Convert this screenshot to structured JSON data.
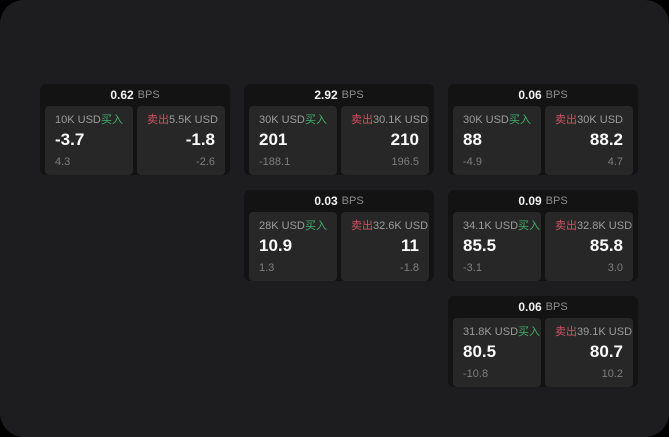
{
  "labels": {
    "bps_unit": "BPS",
    "buy": "买入",
    "sell": "卖出"
  },
  "colors": {
    "buy_green": "#3fae68",
    "sell_red": "#d05260",
    "page_background": "#1d1d1f",
    "card_background": "#131313",
    "panel_background": "#272727"
  },
  "cards": [
    {
      "row": 1,
      "col": 1,
      "bps": "0.62",
      "buy_size": "10K USD",
      "buy_price": "-3.7",
      "buy_sub": "4.3",
      "sell_size": "5.5K USD",
      "sell_price": "-1.8",
      "sell_sub": "-2.6"
    },
    {
      "row": 1,
      "col": 2,
      "bps": "2.92",
      "buy_size": "30K USD",
      "buy_price": "201",
      "buy_sub": "-188.1",
      "sell_size": "30.1K USD",
      "sell_price": "210",
      "sell_sub": "196.5"
    },
    {
      "row": 1,
      "col": 3,
      "bps": "0.06",
      "buy_size": "30K USD",
      "buy_price": "88",
      "buy_sub": "-4.9",
      "sell_size": "30K USD",
      "sell_price": "88.2",
      "sell_sub": "4.7"
    },
    {
      "row": 2,
      "col": 2,
      "bps": "0.03",
      "buy_size": "28K USD",
      "buy_price": "10.9",
      "buy_sub": "1.3",
      "sell_size": "32.6K USD",
      "sell_price": "11",
      "sell_sub": "-1.8"
    },
    {
      "row": 2,
      "col": 3,
      "bps": "0.09",
      "buy_size": "34.1K USD",
      "buy_price": "85.5",
      "buy_sub": "-3.1",
      "sell_size": "32.8K USD",
      "sell_price": "85.8",
      "sell_sub": "3.0"
    },
    {
      "row": 3,
      "col": 3,
      "bps": "0.06",
      "buy_size": "31.8K USD",
      "buy_price": "80.5",
      "buy_sub": "-10.8",
      "sell_size": "39.1K USD",
      "sell_price": "80.7",
      "sell_sub": "10.2"
    }
  ]
}
